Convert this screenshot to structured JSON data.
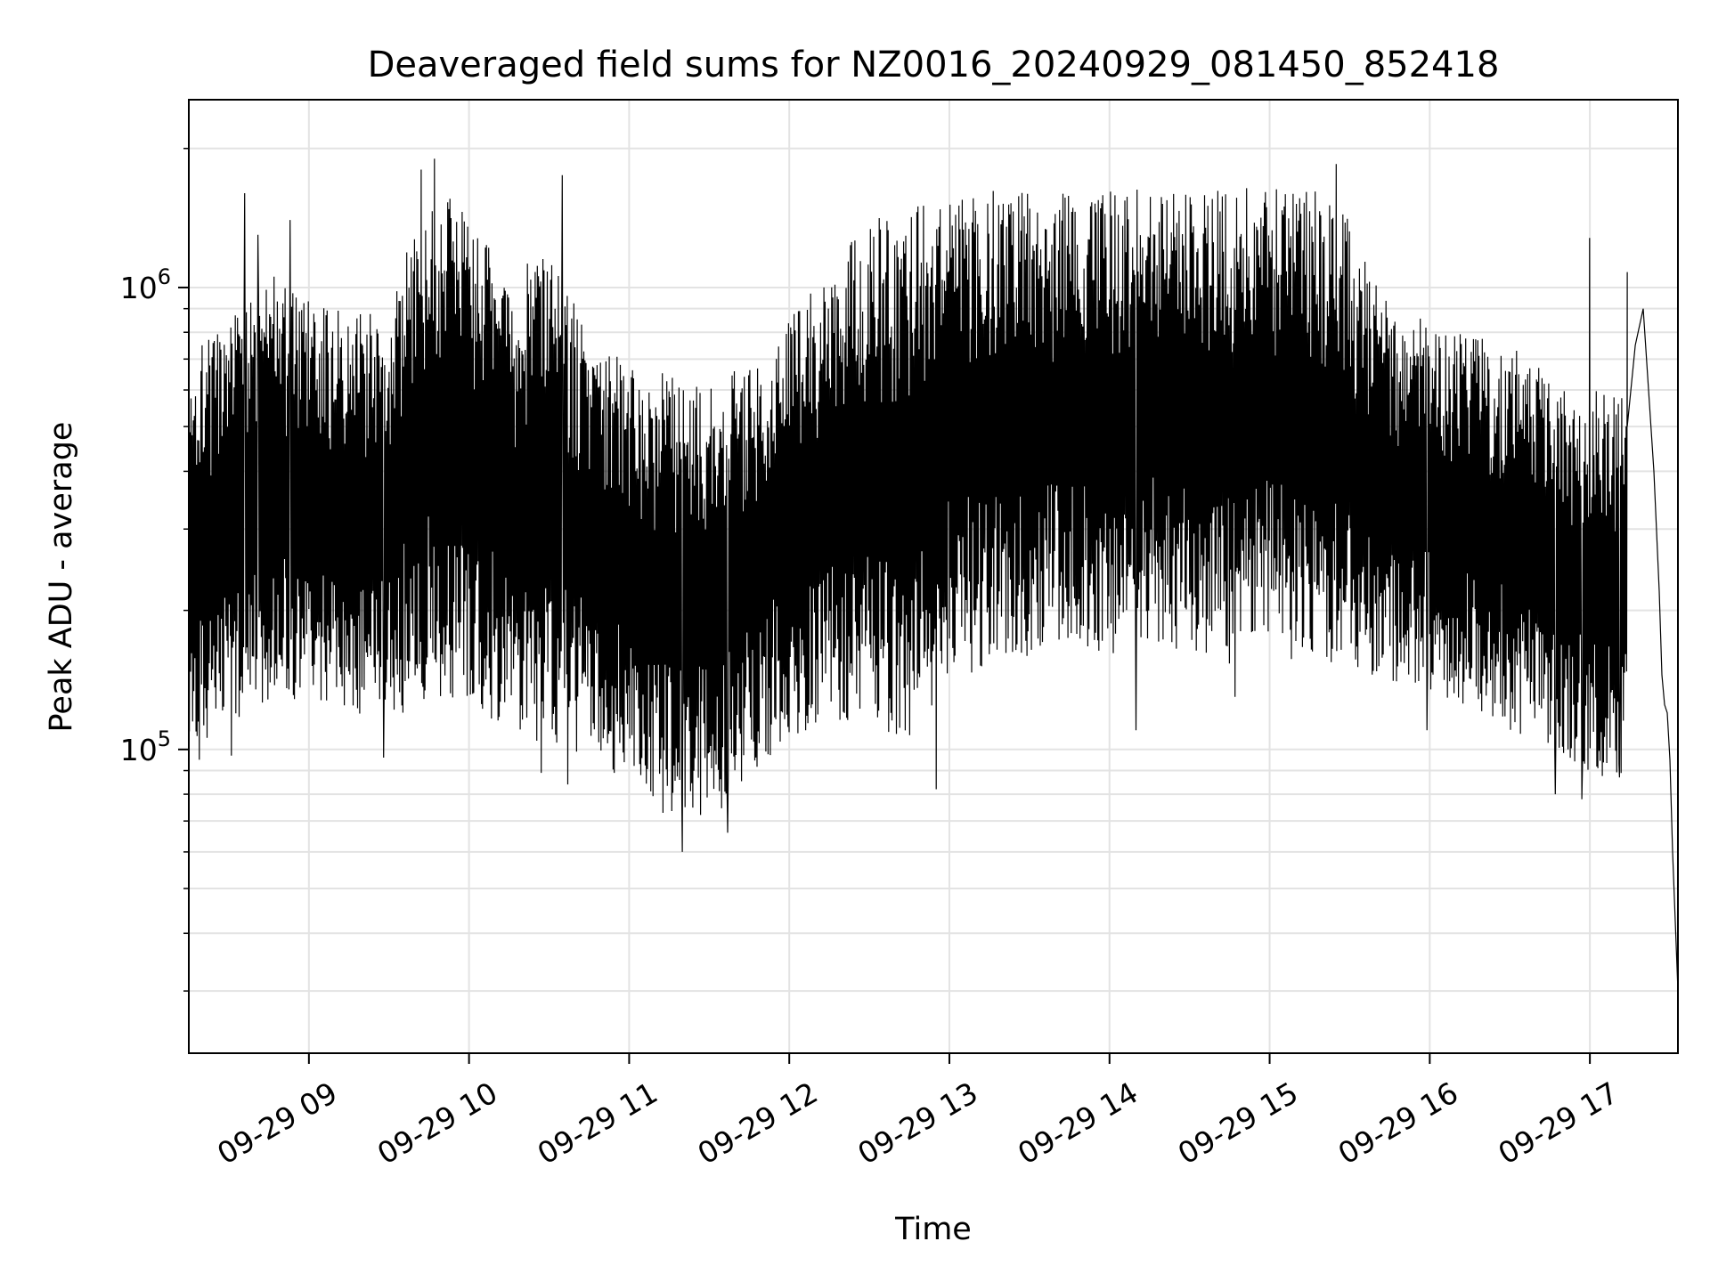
{
  "chart_data": {
    "type": "line",
    "title": "Deaveraged field sums for NZ0016_20240929_081450_852418",
    "xlabel": "Time",
    "ylabel": "Peak ADU - average",
    "yscale": "log",
    "ylim": [
      22000,
      2550000
    ],
    "xlim": [
      "2024-09-29 08:15",
      "2024-09-29 17:33"
    ],
    "x_ticks": [
      {
        "time": "2024-09-29 09:00",
        "label": "09-29 09"
      },
      {
        "time": "2024-09-29 10:00",
        "label": "09-29 10"
      },
      {
        "time": "2024-09-29 11:00",
        "label": "09-29 11"
      },
      {
        "time": "2024-09-29 12:00",
        "label": "09-29 12"
      },
      {
        "time": "2024-09-29 13:00",
        "label": "09-29 13"
      },
      {
        "time": "2024-09-29 14:00",
        "label": "09-29 14"
      },
      {
        "time": "2024-09-29 15:00",
        "label": "09-29 15"
      },
      {
        "time": "2024-09-29 16:00",
        "label": "09-29 16"
      },
      {
        "time": "2024-09-29 17:00",
        "label": "09-29 17"
      }
    ],
    "y_ticks": [
      {
        "value": 100000,
        "base": "10",
        "exp": "5"
      },
      {
        "value": 1000000,
        "base": "10",
        "exp": "6"
      }
    ],
    "grid": true,
    "line_color": "#000000",
    "series": [
      {
        "envelope": [
          {
            "time": "2024-09-29 08:15",
            "low": 95000,
            "high": 720000
          },
          {
            "time": "2024-09-29 08:30",
            "low": 115000,
            "high": 880000
          },
          {
            "time": "2024-09-29 08:45",
            "low": 120000,
            "high": 1100000
          },
          {
            "time": "2024-09-29 09:00",
            "low": 125000,
            "high": 950000
          },
          {
            "time": "2024-09-29 09:15",
            "low": 120000,
            "high": 870000
          },
          {
            "time": "2024-09-29 09:30",
            "low": 115000,
            "high": 900000
          },
          {
            "time": "2024-09-29 09:45",
            "low": 130000,
            "high": 1700000
          },
          {
            "time": "2024-09-29 10:00",
            "low": 125000,
            "high": 1500000
          },
          {
            "time": "2024-09-29 10:15",
            "low": 110000,
            "high": 1000000
          },
          {
            "time": "2024-09-29 10:30",
            "low": 100000,
            "high": 1300000
          },
          {
            "time": "2024-09-29 10:45",
            "low": 95000,
            "high": 750000
          },
          {
            "time": "2024-09-29 11:00",
            "low": 85000,
            "high": 700000
          },
          {
            "time": "2024-09-29 11:15",
            "low": 70000,
            "high": 650000
          },
          {
            "time": "2024-09-29 11:30",
            "low": 70000,
            "high": 600000
          },
          {
            "time": "2024-09-29 11:45",
            "low": 85000,
            "high": 700000
          },
          {
            "time": "2024-09-29 12:00",
            "low": 105000,
            "high": 850000
          },
          {
            "time": "2024-09-29 12:15",
            "low": 115000,
            "high": 1100000
          },
          {
            "time": "2024-09-29 12:30",
            "low": 110000,
            "high": 1400000
          },
          {
            "time": "2024-09-29 12:45",
            "low": 105000,
            "high": 1500000
          },
          {
            "time": "2024-09-29 13:00",
            "low": 140000,
            "high": 1650000
          },
          {
            "time": "2024-09-29 13:15",
            "low": 150000,
            "high": 1650000
          },
          {
            "time": "2024-09-29 13:30",
            "low": 160000,
            "high": 1600000
          },
          {
            "time": "2024-09-29 13:45",
            "low": 170000,
            "high": 1600000
          },
          {
            "time": "2024-09-29 14:00",
            "low": 160000,
            "high": 1650000
          },
          {
            "time": "2024-09-29 14:15",
            "low": 170000,
            "high": 1650000
          },
          {
            "time": "2024-09-29 14:30",
            "low": 160000,
            "high": 1600000
          },
          {
            "time": "2024-09-29 14:45",
            "low": 150000,
            "high": 1650000
          },
          {
            "time": "2024-09-29 15:00",
            "low": 165000,
            "high": 1650000
          },
          {
            "time": "2024-09-29 15:15",
            "low": 150000,
            "high": 1700000
          },
          {
            "time": "2024-09-29 15:30",
            "low": 140000,
            "high": 1400000
          },
          {
            "time": "2024-09-29 15:45",
            "low": 140000,
            "high": 900000
          },
          {
            "time": "2024-09-29 16:00",
            "low": 135000,
            "high": 850000
          },
          {
            "time": "2024-09-29 16:15",
            "low": 120000,
            "high": 800000
          },
          {
            "time": "2024-09-29 16:30",
            "low": 110000,
            "high": 750000
          },
          {
            "time": "2024-09-29 16:45",
            "low": 100000,
            "high": 650000
          },
          {
            "time": "2024-09-29 17:00",
            "low": 85000,
            "high": 600000
          },
          {
            "time": "2024-09-29 17:15",
            "low": 90000,
            "high": 600000
          }
        ],
        "spikes": [
          {
            "time": "2024-09-29 08:19",
            "value": 95000
          },
          {
            "time": "2024-09-29 08:31",
            "value": 97000
          },
          {
            "time": "2024-09-29 08:36",
            "value": 1600000
          },
          {
            "time": "2024-09-29 08:41",
            "value": 1300000
          },
          {
            "time": "2024-09-29 08:53",
            "value": 1400000
          },
          {
            "time": "2024-09-29 09:28",
            "value": 96000
          },
          {
            "time": "2024-09-29 09:42",
            "value": 1800000
          },
          {
            "time": "2024-09-29 09:47",
            "value": 1900000
          },
          {
            "time": "2024-09-29 10:27",
            "value": 89000
          },
          {
            "time": "2024-09-29 10:35",
            "value": 1750000
          },
          {
            "time": "2024-09-29 10:37",
            "value": 84000
          },
          {
            "time": "2024-09-29 11:20",
            "value": 60000
          },
          {
            "time": "2024-09-29 11:37",
            "value": 66000
          },
          {
            "time": "2024-09-29 12:55",
            "value": 82000
          },
          {
            "time": "2024-09-29 14:10",
            "value": 110000
          },
          {
            "time": "2024-09-29 14:47",
            "value": 130000
          },
          {
            "time": "2024-09-29 15:25",
            "value": 1850000
          },
          {
            "time": "2024-09-29 15:59",
            "value": 110000
          },
          {
            "time": "2024-09-29 16:47",
            "value": 80000
          },
          {
            "time": "2024-09-29 16:57",
            "value": 78000
          },
          {
            "time": "2024-09-29 17:00",
            "value": 1280000
          },
          {
            "time": "2024-09-29 17:11",
            "value": 87000
          },
          {
            "time": "2024-09-29 17:19",
            "value": 1080000
          }
        ],
        "tail": [
          {
            "time": "2024-09-29 17:14",
            "value": 500000
          },
          {
            "time": "2024-09-29 17:17",
            "value": 750000
          },
          {
            "time": "2024-09-29 17:20",
            "value": 900000
          },
          {
            "time": "2024-09-29 17:22",
            "value": 600000
          },
          {
            "time": "2024-09-29 17:24",
            "value": 400000
          },
          {
            "time": "2024-09-29 17:26",
            "value": 220000
          },
          {
            "time": "2024-09-29 17:27",
            "value": 145000
          },
          {
            "time": "2024-09-29 17:28",
            "value": 125000
          },
          {
            "time": "2024-09-29 17:29",
            "value": 120000
          },
          {
            "time": "2024-09-29 17:30",
            "value": 95000
          },
          {
            "time": "2024-09-29 17:31",
            "value": 60000
          },
          {
            "time": "2024-09-29 17:33",
            "value": 30000
          }
        ]
      }
    ]
  }
}
